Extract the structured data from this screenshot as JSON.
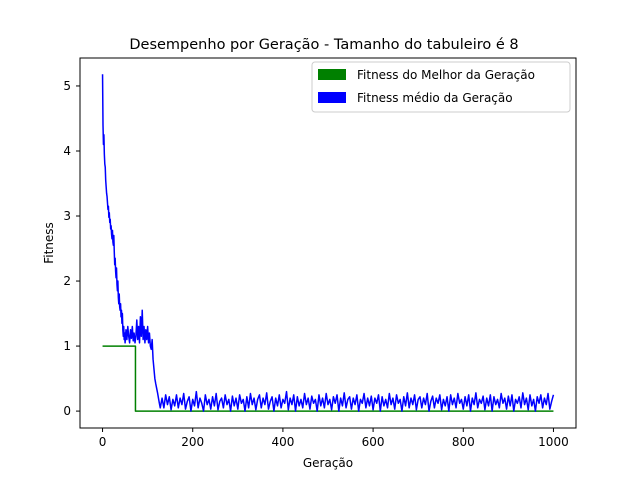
{
  "chart_data": {
    "type": "line",
    "title": "Desempenho por Geração - Tamanho do tabuleiro é 8",
    "xlabel": "Geração",
    "ylabel": "Fitness",
    "xlim": [
      -50,
      1050
    ],
    "ylim": [
      -0.26,
      5.43
    ],
    "xticks": [
      0,
      200,
      400,
      600,
      800,
      1000
    ],
    "yticks": [
      0,
      1,
      2,
      3,
      4,
      5
    ],
    "grid": false,
    "legend_position": "top-right",
    "series": [
      {
        "name": "Fitness do Melhor da Geração",
        "color": "#008000",
        "points": [
          [
            0,
            1
          ],
          [
            73,
            1
          ],
          [
            73,
            0
          ],
          [
            1000,
            0
          ]
        ]
      },
      {
        "name": "Fitness médio da Geração",
        "color": "#0000ff",
        "points": [
          [
            0,
            5.18
          ],
          [
            1,
            4.4
          ],
          [
            2,
            4.1
          ],
          [
            3,
            4.25
          ],
          [
            4,
            3.95
          ],
          [
            5,
            3.8
          ],
          [
            6,
            3.75
          ],
          [
            7,
            3.55
          ],
          [
            8,
            3.45
          ],
          [
            9,
            3.35
          ],
          [
            10,
            3.3
          ],
          [
            11,
            3.2
          ],
          [
            12,
            3.1
          ],
          [
            13,
            3.15
          ],
          [
            14,
            2.98
          ],
          [
            15,
            3.05
          ],
          [
            16,
            2.9
          ],
          [
            17,
            2.95
          ],
          [
            18,
            2.8
          ],
          [
            19,
            2.85
          ],
          [
            20,
            2.72
          ],
          [
            21,
            2.65
          ],
          [
            22,
            2.78
          ],
          [
            23,
            2.6
          ],
          [
            24,
            2.55
          ],
          [
            25,
            2.7
          ],
          [
            26,
            2.45
          ],
          [
            27,
            2.25
          ],
          [
            28,
            2.35
          ],
          [
            29,
            2.15
          ],
          [
            30,
            2.05
          ],
          [
            31,
            2.2
          ],
          [
            32,
            1.95
          ],
          [
            33,
            1.85
          ],
          [
            34,
            2.0
          ],
          [
            35,
            1.75
          ],
          [
            36,
            1.65
          ],
          [
            37,
            1.8
          ],
          [
            38,
            1.6
          ],
          [
            39,
            1.55
          ],
          [
            40,
            1.65
          ],
          [
            41,
            1.45
          ],
          [
            42,
            1.55
          ],
          [
            43,
            1.35
          ],
          [
            44,
            1.5
          ],
          [
            45,
            1.25
          ],
          [
            46,
            1.15
          ],
          [
            47,
            1.3
          ],
          [
            48,
            1.1
          ],
          [
            49,
            1.2
          ],
          [
            50,
            1.05
          ],
          [
            52,
            1.25
          ],
          [
            54,
            1.1
          ],
          [
            56,
            1.3
          ],
          [
            58,
            1.15
          ],
          [
            60,
            1.05
          ],
          [
            62,
            1.25
          ],
          [
            64,
            1.12
          ],
          [
            66,
            1.3
          ],
          [
            68,
            1.08
          ],
          [
            70,
            1.2
          ],
          [
            72,
            1.05
          ],
          [
            74,
            1.15
          ],
          [
            76,
            1.4
          ],
          [
            78,
            1.1
          ],
          [
            80,
            1.3
          ],
          [
            82,
            1.05
          ],
          [
            84,
            1.45
          ],
          [
            86,
            1.15
          ],
          [
            88,
            1.55
          ],
          [
            90,
            1.1
          ],
          [
            92,
            1.3
          ],
          [
            94,
            1.05
          ],
          [
            96,
            1.25
          ],
          [
            98,
            1.1
          ],
          [
            100,
            1.3
          ],
          [
            102,
            1.05
          ],
          [
            104,
            1.2
          ],
          [
            106,
            1.0
          ],
          [
            108,
            0.95
          ],
          [
            110,
            1.1
          ],
          [
            112,
            0.8
          ],
          [
            114,
            0.65
          ],
          [
            116,
            0.5
          ],
          [
            118,
            0.42
          ],
          [
            120,
            0.35
          ],
          [
            122,
            0.28
          ],
          [
            124,
            0.2
          ],
          [
            126,
            0.12
          ],
          [
            128,
            0.05
          ],
          [
            132,
            0.2
          ],
          [
            136,
            0.05
          ],
          [
            140,
            0.25
          ],
          [
            144,
            0.1
          ],
          [
            148,
            0.22
          ],
          [
            152,
            0.02
          ],
          [
            156,
            0.18
          ],
          [
            160,
            0.08
          ],
          [
            164,
            0.25
          ],
          [
            168,
            0.05
          ],
          [
            172,
            0.2
          ],
          [
            176,
            0.1
          ],
          [
            180,
            0.27
          ],
          [
            184,
            0.03
          ],
          [
            188,
            0.15
          ],
          [
            192,
            0.22
          ],
          [
            196,
            0.0
          ],
          [
            200,
            0.18
          ],
          [
            204,
            0.08
          ],
          [
            208,
            0.3
          ],
          [
            212,
            0.05
          ],
          [
            216,
            0.2
          ],
          [
            220,
            0.12
          ],
          [
            224,
            0.0
          ],
          [
            228,
            0.25
          ],
          [
            232,
            0.1
          ],
          [
            236,
            0.18
          ],
          [
            240,
            0.03
          ],
          [
            244,
            0.22
          ],
          [
            248,
            0.08
          ],
          [
            252,
            0.27
          ],
          [
            256,
            0.02
          ],
          [
            260,
            0.15
          ],
          [
            264,
            0.2
          ],
          [
            268,
            0.05
          ],
          [
            272,
            0.25
          ],
          [
            276,
            0.1
          ],
          [
            280,
            0.18
          ],
          [
            284,
            0.0
          ],
          [
            288,
            0.23
          ],
          [
            292,
            0.08
          ],
          [
            296,
            0.2
          ],
          [
            300,
            0.03
          ],
          [
            304,
            0.25
          ],
          [
            308,
            0.12
          ],
          [
            312,
            0.18
          ],
          [
            316,
            0.0
          ],
          [
            320,
            0.22
          ],
          [
            324,
            0.05
          ],
          [
            328,
            0.27
          ],
          [
            332,
            0.1
          ],
          [
            336,
            0.2
          ],
          [
            340,
            0.02
          ],
          [
            344,
            0.18
          ],
          [
            348,
            0.25
          ],
          [
            352,
            0.05
          ],
          [
            356,
            0.2
          ],
          [
            360,
            0.1
          ],
          [
            364,
            0.28
          ],
          [
            368,
            0.03
          ],
          [
            372,
            0.15
          ],
          [
            376,
            0.22
          ],
          [
            380,
            0.0
          ],
          [
            384,
            0.2
          ],
          [
            388,
            0.08
          ],
          [
            392,
            0.25
          ],
          [
            396,
            0.05
          ],
          [
            400,
            0.18
          ],
          [
            404,
            0.12
          ],
          [
            408,
            0.3
          ],
          [
            412,
            0.02
          ],
          [
            416,
            0.2
          ],
          [
            420,
            0.1
          ],
          [
            424,
            0.25
          ],
          [
            428,
            0.0
          ],
          [
            432,
            0.22
          ],
          [
            436,
            0.08
          ],
          [
            440,
            0.18
          ],
          [
            444,
            0.05
          ],
          [
            448,
            0.27
          ],
          [
            452,
            0.1
          ],
          [
            456,
            0.2
          ],
          [
            460,
            0.03
          ],
          [
            464,
            0.23
          ],
          [
            468,
            0.12
          ],
          [
            472,
            0.18
          ],
          [
            476,
            0.0
          ],
          [
            480,
            0.25
          ],
          [
            484,
            0.08
          ],
          [
            488,
            0.2
          ],
          [
            492,
            0.05
          ],
          [
            496,
            0.27
          ],
          [
            500,
            0.1
          ],
          [
            504,
            0.18
          ],
          [
            508,
            0.02
          ],
          [
            512,
            0.22
          ],
          [
            516,
            0.12
          ],
          [
            520,
            0.25
          ],
          [
            524,
            0.0
          ],
          [
            528,
            0.2
          ],
          [
            532,
            0.08
          ],
          [
            536,
            0.28
          ],
          [
            540,
            0.05
          ],
          [
            544,
            0.18
          ],
          [
            548,
            0.22
          ],
          [
            552,
            0.03
          ],
          [
            556,
            0.2
          ],
          [
            560,
            0.1
          ],
          [
            564,
            0.25
          ],
          [
            568,
            0.0
          ],
          [
            572,
            0.18
          ],
          [
            576,
            0.12
          ],
          [
            580,
            0.27
          ],
          [
            584,
            0.05
          ],
          [
            588,
            0.2
          ],
          [
            592,
            0.08
          ],
          [
            596,
            0.23
          ],
          [
            600,
            0.02
          ],
          [
            604,
            0.2
          ],
          [
            608,
            0.12
          ],
          [
            612,
            0.25
          ],
          [
            616,
            0.0
          ],
          [
            620,
            0.22
          ],
          [
            624,
            0.08
          ],
          [
            628,
            0.18
          ],
          [
            632,
            0.05
          ],
          [
            636,
            0.27
          ],
          [
            640,
            0.1
          ],
          [
            644,
            0.2
          ],
          [
            648,
            0.03
          ],
          [
            652,
            0.25
          ],
          [
            656,
            0.12
          ],
          [
            660,
            0.18
          ],
          [
            664,
            0.0
          ],
          [
            668,
            0.22
          ],
          [
            672,
            0.08
          ],
          [
            676,
            0.28
          ],
          [
            680,
            0.05
          ],
          [
            684,
            0.2
          ],
          [
            688,
            0.1
          ],
          [
            692,
            0.25
          ],
          [
            696,
            0.02
          ],
          [
            700,
            0.18
          ],
          [
            704,
            0.22
          ],
          [
            708,
            0.05
          ],
          [
            712,
            0.2
          ],
          [
            716,
            0.1
          ],
          [
            720,
            0.27
          ],
          [
            724,
            0.0
          ],
          [
            728,
            0.15
          ],
          [
            732,
            0.23
          ],
          [
            736,
            0.05
          ],
          [
            740,
            0.2
          ],
          [
            744,
            0.12
          ],
          [
            748,
            0.25
          ],
          [
            752,
            0.02
          ],
          [
            756,
            0.18
          ],
          [
            760,
            0.08
          ],
          [
            764,
            0.22
          ],
          [
            768,
            0.0
          ],
          [
            772,
            0.25
          ],
          [
            776,
            0.1
          ],
          [
            780,
            0.2
          ],
          [
            784,
            0.05
          ],
          [
            788,
            0.27
          ],
          [
            792,
            0.12
          ],
          [
            796,
            0.18
          ],
          [
            800,
            0.03
          ],
          [
            804,
            0.22
          ],
          [
            808,
            0.08
          ],
          [
            812,
            0.25
          ],
          [
            816,
            0.0
          ],
          [
            820,
            0.2
          ],
          [
            824,
            0.1
          ],
          [
            828,
            0.28
          ],
          [
            832,
            0.05
          ],
          [
            836,
            0.18
          ],
          [
            840,
            0.12
          ],
          [
            844,
            0.23
          ],
          [
            848,
            0.02
          ],
          [
            852,
            0.2
          ],
          [
            856,
            0.08
          ],
          [
            860,
            0.25
          ],
          [
            864,
            0.0
          ],
          [
            868,
            0.22
          ],
          [
            872,
            0.1
          ],
          [
            876,
            0.18
          ],
          [
            880,
            0.05
          ],
          [
            884,
            0.27
          ],
          [
            888,
            0.12
          ],
          [
            892,
            0.2
          ],
          [
            896,
            0.03
          ],
          [
            900,
            0.23
          ],
          [
            904,
            0.08
          ],
          [
            908,
            0.25
          ],
          [
            912,
            0.0
          ],
          [
            916,
            0.18
          ],
          [
            920,
            0.12
          ],
          [
            924,
            0.22
          ],
          [
            928,
            0.05
          ],
          [
            932,
            0.28
          ],
          [
            936,
            0.1
          ],
          [
            940,
            0.2
          ],
          [
            944,
            0.02
          ],
          [
            948,
            0.25
          ],
          [
            952,
            0.08
          ],
          [
            956,
            0.18
          ],
          [
            960,
            0.0
          ],
          [
            964,
            0.22
          ],
          [
            968,
            0.12
          ],
          [
            972,
            0.25
          ],
          [
            976,
            0.05
          ],
          [
            980,
            0.2
          ],
          [
            984,
            0.1
          ],
          [
            988,
            0.27
          ],
          [
            992,
            0.03
          ],
          [
            996,
            0.15
          ],
          [
            1000,
            0.25
          ]
        ]
      }
    ]
  }
}
